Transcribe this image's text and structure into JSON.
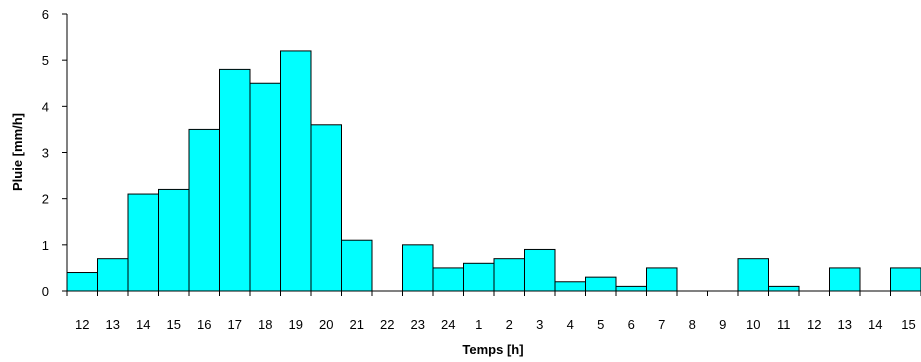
{
  "chart_data": {
    "type": "bar",
    "title": "",
    "xlabel": "Temps [h]",
    "ylabel": "Pluie [mm/h]",
    "ylim": [
      0,
      6
    ],
    "yticks": [
      "0",
      "1",
      "2",
      "3",
      "4",
      "5",
      "6"
    ],
    "grid": false,
    "legend": "none",
    "bar_color": "#00ffff",
    "categories": [
      "12",
      "13",
      "14",
      "15",
      "16",
      "17",
      "18",
      "19",
      "20",
      "21",
      "22",
      "23",
      "24",
      "1",
      "2",
      "3",
      "4",
      "5",
      "6",
      "7",
      "8",
      "9",
      "10",
      "11",
      "12",
      "13",
      "14",
      "15"
    ],
    "values": [
      0.4,
      0.7,
      2.1,
      2.2,
      3.5,
      4.8,
      4.5,
      5.2,
      3.6,
      1.1,
      0,
      1.0,
      0.5,
      0.6,
      0.7,
      0.9,
      0.2,
      0.3,
      0.1,
      0.5,
      0,
      0,
      0.7,
      0.1,
      0,
      0.5,
      0,
      0.5
    ]
  }
}
